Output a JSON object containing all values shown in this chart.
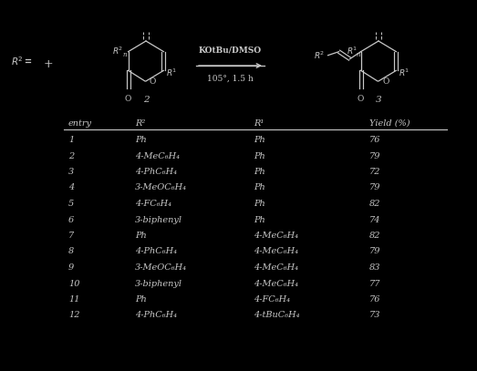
{
  "background_color": "#000000",
  "text_color": "#c8c8c8",
  "headers": [
    "entry",
    "R²",
    "R¹",
    "Yield (%)"
  ],
  "rows": [
    [
      "1",
      "Ph",
      "Ph",
      "76"
    ],
    [
      "2",
      "4-MeC₆H₄",
      "Ph",
      "79"
    ],
    [
      "3",
      "4-PhC₆H₄",
      "Ph",
      "72"
    ],
    [
      "4",
      "3-MeOC₆H₄",
      "Ph",
      "79"
    ],
    [
      "5",
      "4-FC₆H₄",
      "Ph",
      "82"
    ],
    [
      "6",
      "3-biphenyl",
      "Ph",
      "74"
    ],
    [
      "7",
      "Ph",
      "4-MeC₆H₄",
      "82"
    ],
    [
      "8",
      "4-PhC₆H₄",
      "4-MeC₆H₄",
      "79"
    ],
    [
      "9",
      "3-MeOC₆H₄",
      "4-MeC₆H₄",
      "83"
    ],
    [
      "10",
      "3-biphenyl",
      "4-MeC₆H₄",
      "77"
    ],
    [
      "11",
      "Ph",
      "4-FC₆H₄",
      "76"
    ],
    [
      "12",
      "4-PhC₆H₄",
      "4-tBuC₆H₄",
      "73"
    ]
  ],
  "reaction_conditions": "KOtBu/DMSO",
  "reaction_temp": "105°, 1.5 h",
  "fig_width": 5.23,
  "fig_height": 4.07,
  "dpi": 100
}
